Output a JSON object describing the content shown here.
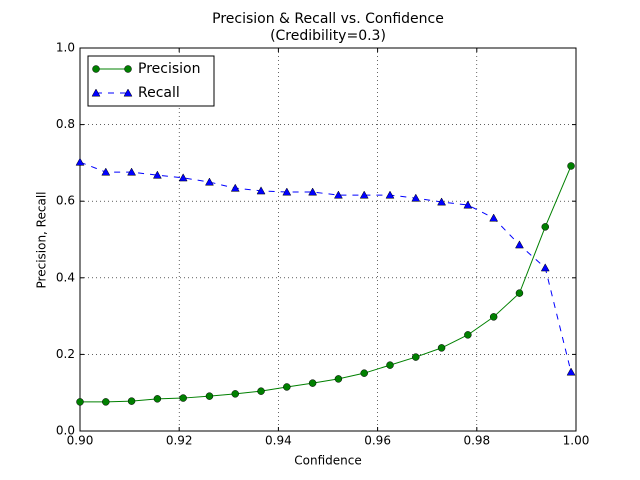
{
  "chart_data": {
    "type": "line",
    "title": "Precision & Recall vs. Confidence",
    "subtitle": "(Credibility=0.3)",
    "x_label": "Confidence",
    "y_label": "Precision, Recall",
    "x": [
      0.9,
      0.9052,
      0.9104,
      0.9156,
      0.9208,
      0.9261,
      0.9313,
      0.9365,
      0.9417,
      0.9469,
      0.9521,
      0.9573,
      0.9625,
      0.9677,
      0.9729,
      0.9782,
      0.9834,
      0.9886,
      0.9938,
      0.999
    ],
    "series": [
      {
        "name": "Precision",
        "color": "#008000",
        "marker": "circle",
        "linestyle": "solid",
        "values": [
          0.076,
          0.076,
          0.078,
          0.084,
          0.086,
          0.091,
          0.097,
          0.104,
          0.115,
          0.125,
          0.136,
          0.151,
          0.172,
          0.193,
          0.217,
          0.251,
          0.298,
          0.36,
          0.533,
          0.692
        ]
      },
      {
        "name": "Recall",
        "color": "#0000ff",
        "marker": "triangle",
        "linestyle": "dashed",
        "values": [
          0.702,
          0.676,
          0.676,
          0.668,
          0.661,
          0.65,
          0.634,
          0.627,
          0.624,
          0.624,
          0.616,
          0.616,
          0.616,
          0.608,
          0.598,
          0.59,
          0.556,
          0.486,
          0.426,
          0.154
        ]
      }
    ],
    "xlim": [
      0.9,
      1.0
    ],
    "ylim": [
      0,
      1.0
    ],
    "xticks": [
      {
        "value": 0.9,
        "label": "0.90"
      },
      0.92,
      0.94,
      0.96,
      0.98,
      {
        "value": 1.0,
        "label": "1.00"
      }
    ],
    "yticks": [
      {
        "value": 0,
        "label": "0.0"
      },
      0.2,
      0.4,
      0.6,
      0.8,
      {
        "value": 1.0,
        "label": "1.0"
      }
    ],
    "grid": true,
    "legend": "upper-left"
  }
}
